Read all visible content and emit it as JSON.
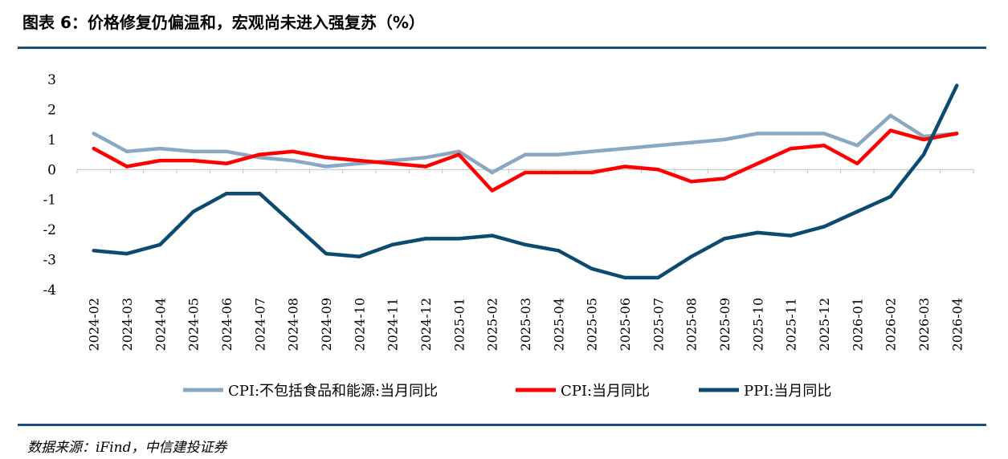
{
  "title": "图表 6：价格修复仍偏温和，宏观尚未进入强复苏（%）",
  "source": "数据来源：iFind，中信建投证券",
  "chart_data": {
    "type": "line",
    "title": "图表 6：价格修复仍偏温和，宏观尚未进入强复苏（%）",
    "xlabel": "",
    "ylabel": "",
    "ylim": [
      -4,
      3
    ],
    "yticks": [
      3,
      2,
      1,
      0,
      -1,
      -2,
      -3,
      -4
    ],
    "grid": false,
    "legend_position": "bottom",
    "categories": [
      "2024-02",
      "2024-03",
      "2024-04",
      "2024-05",
      "2024-06",
      "2024-07",
      "2024-08",
      "2024-09",
      "2024-10",
      "2024-11",
      "2024-12",
      "2025-01",
      "2025-02",
      "2025-03",
      "2025-04",
      "2025-05",
      "2025-06",
      "2025-07",
      "2025-08",
      "2025-09",
      "2025-10",
      "2025-11",
      "2025-12",
      "2026-01",
      "2026-02",
      "2026-03",
      "2026-04"
    ],
    "series": [
      {
        "name": "CPI:不包括食品和能源:当月同比",
        "color": "#8aa8c4",
        "values": [
          1.2,
          0.6,
          0.7,
          0.6,
          0.6,
          0.4,
          0.3,
          0.1,
          0.2,
          0.3,
          0.4,
          0.6,
          -0.1,
          0.5,
          0.5,
          0.6,
          0.7,
          0.8,
          0.9,
          1.0,
          1.2,
          1.2,
          1.2,
          0.8,
          1.8,
          1.1,
          1.2
        ]
      },
      {
        "name": "CPI:当月同比",
        "color": "#ff0000",
        "values": [
          0.7,
          0.1,
          0.3,
          0.3,
          0.2,
          0.5,
          0.6,
          0.4,
          0.3,
          0.2,
          0.1,
          0.5,
          -0.7,
          -0.1,
          -0.1,
          -0.1,
          0.1,
          0.0,
          -0.4,
          -0.3,
          0.2,
          0.7,
          0.8,
          0.2,
          1.3,
          1.0,
          1.2
        ]
      },
      {
        "name": "PPI:当月同比",
        "color": "#0d4a72",
        "values": [
          -2.7,
          -2.8,
          -2.5,
          -1.4,
          -0.8,
          -0.8,
          -1.8,
          -2.8,
          -2.9,
          -2.5,
          -2.3,
          -2.3,
          -2.2,
          -2.5,
          -2.7,
          -3.3,
          -3.6,
          -3.6,
          -2.9,
          -2.3,
          -2.1,
          -2.2,
          -1.9,
          -1.4,
          -0.9,
          0.5,
          2.8
        ]
      }
    ]
  }
}
